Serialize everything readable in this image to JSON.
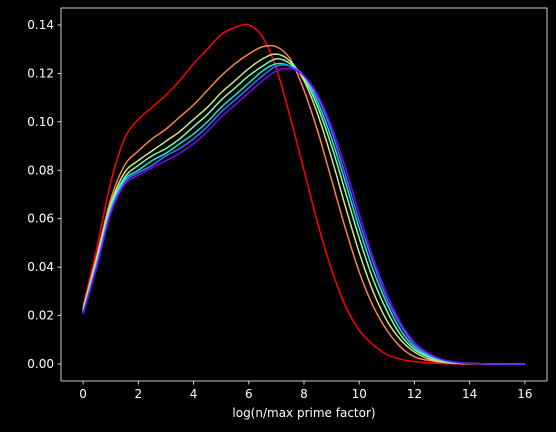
{
  "chart_data": {
    "type": "line",
    "title": "",
    "xlabel": "log(n/max prime factor)",
    "ylabel": "",
    "xlim": [
      -0.8,
      16.8
    ],
    "ylim": [
      -0.007,
      0.147
    ],
    "xticks": [
      0,
      2,
      4,
      6,
      8,
      10,
      12,
      14,
      16
    ],
    "yticks": [
      0.0,
      0.02,
      0.04,
      0.06,
      0.08,
      0.1,
      0.12,
      0.14
    ],
    "grid": false,
    "background": "#000000",
    "foreground": "#ffffff",
    "x": [
      0,
      0.5,
      1,
      1.5,
      2,
      2.5,
      3,
      3.5,
      4,
      4.5,
      5,
      5.5,
      6,
      6.5,
      7,
      7.5,
      8,
      8.5,
      9,
      9.5,
      10,
      10.5,
      11,
      11.5,
      12,
      12.5,
      13,
      13.5,
      14,
      15,
      16
    ],
    "series": [
      {
        "color": "#ff0000",
        "values": [
          0.024,
          0.048,
          0.075,
          0.093,
          0.101,
          0.106,
          0.111,
          0.117,
          0.124,
          0.13,
          0.136,
          0.139,
          0.14,
          0.135,
          0.122,
          0.102,
          0.08,
          0.058,
          0.039,
          0.024,
          0.014,
          0.008,
          0.004,
          0.002,
          0.001,
          0.0005,
          0.0002,
          0.0001,
          0.0,
          0.0,
          0.0
        ]
      },
      {
        "color": "#ff7f4e",
        "values": [
          0.023,
          0.045,
          0.068,
          0.082,
          0.088,
          0.093,
          0.097,
          0.102,
          0.107,
          0.113,
          0.119,
          0.124,
          0.128,
          0.131,
          0.131,
          0.126,
          0.113,
          0.096,
          0.076,
          0.056,
          0.038,
          0.024,
          0.014,
          0.007,
          0.003,
          0.0015,
          0.0007,
          0.0003,
          0.0001,
          0.0,
          0.0
        ]
      },
      {
        "color": "#d4e680",
        "values": [
          0.0225,
          0.044,
          0.066,
          0.079,
          0.084,
          0.088,
          0.092,
          0.096,
          0.101,
          0.106,
          0.112,
          0.117,
          0.122,
          0.126,
          0.128,
          0.125,
          0.117,
          0.103,
          0.085,
          0.065,
          0.046,
          0.03,
          0.018,
          0.01,
          0.005,
          0.0022,
          0.001,
          0.0004,
          0.0002,
          0.0,
          0.0
        ]
      },
      {
        "color": "#80ffb4",
        "values": [
          0.022,
          0.043,
          0.065,
          0.077,
          0.082,
          0.086,
          0.089,
          0.093,
          0.098,
          0.103,
          0.109,
          0.114,
          0.119,
          0.123,
          0.126,
          0.124,
          0.118,
          0.106,
          0.09,
          0.071,
          0.052,
          0.035,
          0.022,
          0.012,
          0.006,
          0.003,
          0.0013,
          0.0005,
          0.0002,
          0.0,
          0.0
        ]
      },
      {
        "color": "#2adcdc",
        "values": [
          0.0215,
          0.042,
          0.064,
          0.076,
          0.08,
          0.084,
          0.087,
          0.091,
          0.095,
          0.1,
          0.106,
          0.111,
          0.116,
          0.121,
          0.124,
          0.123,
          0.119,
          0.108,
          0.093,
          0.075,
          0.056,
          0.039,
          0.025,
          0.014,
          0.007,
          0.0035,
          0.0015,
          0.0006,
          0.0002,
          0.0,
          0.0
        ]
      },
      {
        "color": "#2a7ff6",
        "values": [
          0.021,
          0.041,
          0.063,
          0.075,
          0.079,
          0.082,
          0.086,
          0.089,
          0.093,
          0.098,
          0.104,
          0.109,
          0.114,
          0.119,
          0.123,
          0.123,
          0.119,
          0.11,
          0.096,
          0.078,
          0.059,
          0.042,
          0.027,
          0.016,
          0.008,
          0.004,
          0.0018,
          0.0007,
          0.0003,
          0.0,
          0.0
        ]
      },
      {
        "color": "#8000ff",
        "values": [
          0.0205,
          0.04,
          0.062,
          0.074,
          0.078,
          0.081,
          0.084,
          0.087,
          0.091,
          0.096,
          0.102,
          0.107,
          0.112,
          0.117,
          0.121,
          0.122,
          0.119,
          0.111,
          0.098,
          0.081,
          0.062,
          0.044,
          0.029,
          0.017,
          0.009,
          0.0045,
          0.002,
          0.0008,
          0.0003,
          0.0,
          0.0
        ]
      }
    ]
  }
}
